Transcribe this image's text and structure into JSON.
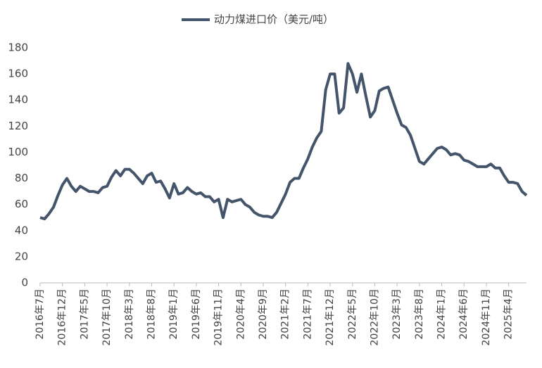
{
  "chart_data": {
    "type": "line",
    "categories": [
      "2016年7月",
      null,
      null,
      null,
      null,
      "2016年12月",
      null,
      null,
      null,
      null,
      "2017年5月",
      null,
      null,
      null,
      null,
      "2017年10月",
      null,
      null,
      null,
      null,
      "2018年3月",
      null,
      null,
      null,
      null,
      "2018年8月",
      null,
      null,
      null,
      null,
      "2019年1月",
      null,
      null,
      null,
      null,
      "2019年6月",
      null,
      null,
      null,
      null,
      "2019年11月",
      null,
      null,
      null,
      null,
      "2020年4月",
      null,
      null,
      null,
      null,
      "2020年9月",
      null,
      null,
      null,
      null,
      "2021年2月",
      null,
      null,
      null,
      null,
      "2021年7月",
      null,
      null,
      null,
      null,
      "2021年12月",
      null,
      null,
      null,
      null,
      "2022年5月",
      null,
      null,
      null,
      null,
      "2022年10月",
      null,
      null,
      null,
      null,
      "2023年3月",
      null,
      null,
      null,
      null,
      "2023年8月",
      null,
      null,
      null,
      null,
      "2024年1月",
      null,
      null,
      null,
      null,
      "2024年6月",
      null,
      null,
      null,
      null,
      "2024年11月",
      null,
      null,
      null,
      null,
      "2025年4月",
      null,
      null,
      null,
      null
    ],
    "series": [
      {
        "name": "动力煤进口价（美元/吨）",
        "color": "#44546a",
        "values": [
          50,
          49,
          53,
          58,
          67,
          75,
          80,
          74,
          70,
          74,
          72,
          70,
          70,
          69,
          73,
          74,
          81,
          86,
          82,
          87,
          87,
          84,
          80,
          76,
          82,
          84,
          77,
          78,
          72,
          65,
          76,
          68,
          69,
          73,
          70,
          68,
          69,
          66,
          66,
          62,
          64,
          50,
          64,
          62,
          63,
          64,
          60,
          58,
          54,
          52,
          51,
          51,
          50,
          54,
          61,
          68,
          77,
          80,
          80,
          88,
          95,
          104,
          111,
          116,
          148,
          160,
          160,
          130,
          134,
          168,
          160,
          146,
          160,
          143,
          127,
          132,
          147,
          149,
          150,
          140,
          130,
          121,
          119,
          113,
          103,
          93,
          91,
          95,
          99,
          103,
          104,
          102,
          98,
          99,
          98,
          94,
          93,
          91,
          89,
          89,
          89,
          91,
          88,
          88,
          82,
          77,
          77,
          76,
          70,
          67
        ]
      }
    ],
    "ylim": [
      0,
      180
    ],
    "yticks": [
      0,
      20,
      40,
      60,
      80,
      100,
      120,
      140,
      160,
      180
    ],
    "legend": "top"
  }
}
